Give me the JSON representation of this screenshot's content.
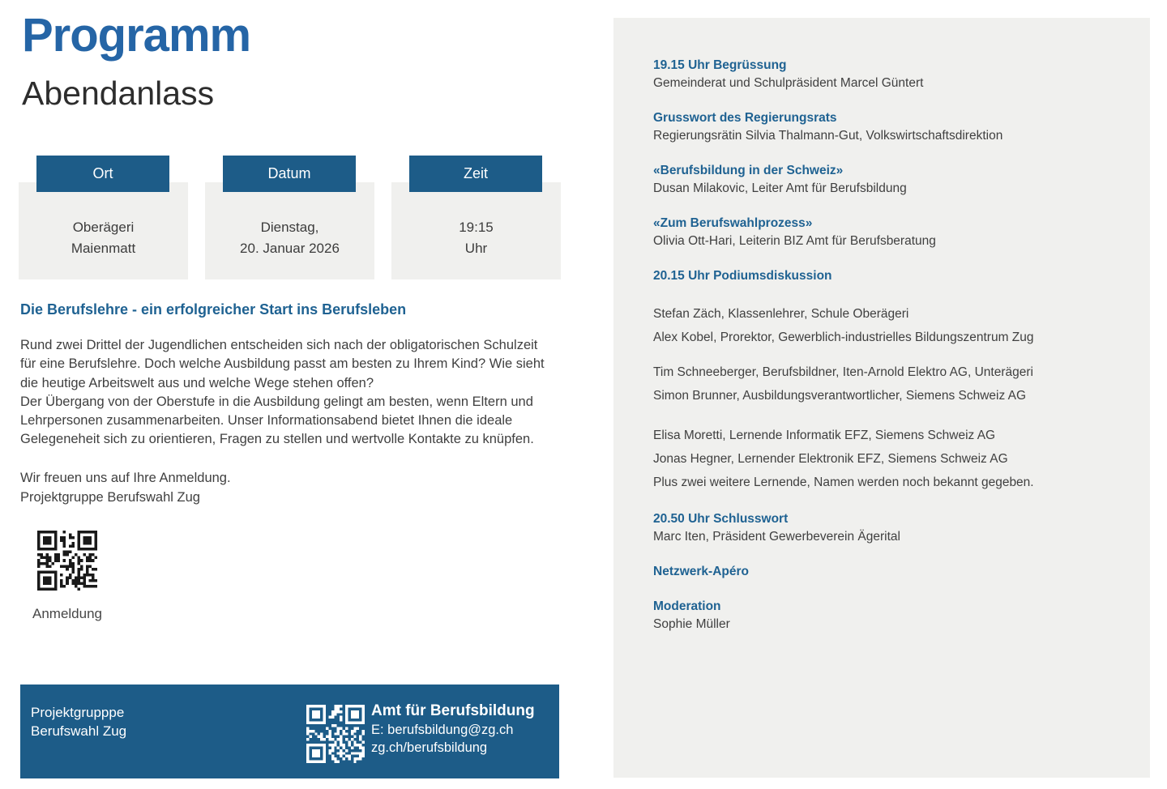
{
  "page": {
    "title": "Programm",
    "subtitle": "Abendanlass"
  },
  "info_cards": [
    {
      "label": "Ort",
      "lines": [
        "Oberägeri",
        "Maienmatt"
      ]
    },
    {
      "label": "Datum",
      "lines": [
        "Dienstag,",
        "20. Januar 2026"
      ]
    },
    {
      "label": "Zeit",
      "lines": [
        "19:15",
        "Uhr"
      ]
    }
  ],
  "intro": {
    "heading": "Die Berufslehre - ein erfolgreicher Start ins Berufsleben",
    "paragraph_lines": [
      "Rund zwei Drittel der Jugendlichen entscheiden sich nach der obligatorischen Schulzeit",
      "für eine Berufslehre. Doch welche Ausbildung passt am besten zu Ihrem Kind? Wie sieht",
      "die heutige Arbeitswelt aus und welche Wege stehen offen?",
      "Der Übergang von der Oberstufe in die Ausbildung gelingt am besten, wenn Eltern und",
      "Lehrpersonen zusammenarbeiten. Unser Informationsabend bietet Ihnen die ideale",
      "Gelegeneheit sich zu orientieren, Fragen zu stellen und wertvolle Kontakte zu knüpfen."
    ],
    "closing_lines": [
      "Wir freuen uns auf Ihre Anmeldung.",
      "Projektgruppe Berufswahl Zug"
    ],
    "qr_caption": "Anmeldung"
  },
  "footer": {
    "left_lines": [
      "Projektgrupppe",
      "Berufswahl Zug"
    ],
    "right_title": "Amt für Berufsbildung",
    "right_lines": [
      "E: berufsbildung@zg.ch",
      "zg.ch/berufsbildung"
    ]
  },
  "schedule": {
    "items": [
      {
        "heading": "19.15 Uhr Begrüssung",
        "lines": [
          "Gemeinderat und Schulpräsident Marcel Güntert"
        ]
      },
      {
        "heading": "Grusswort des Regierungsrats",
        "lines": [
          "Regierungsrätin Silvia Thalmann-Gut, Volkswirtschaftsdirektion"
        ]
      },
      {
        "heading": "«Berufsbildung in der Schweiz»",
        "lines": [
          "Dusan Milakovic, Leiter Amt für Berufsbildung"
        ]
      },
      {
        "heading": "«Zum Berufswahlprozess»",
        "lines": [
          "Olivia Ott-Hari, Leiterin BIZ Amt für Berufsberatung"
        ]
      },
      {
        "heading": "20.15 Uhr Podiumsdiskussion",
        "lines": []
      },
      {
        "heading": "",
        "lines": [
          "Stefan Zäch, Klassenlehrer, Schule Oberägeri",
          "Alex Kobel, Prorektor, Gewerblich-industrielles Bildungszentrum Zug"
        ]
      },
      {
        "heading": "",
        "lines": [
          "Tim Schneeberger, Berufsbildner, Iten-Arnold Elektro AG, Unterägeri",
          "Simon Brunner, Ausbildungsverantwortlicher, Siemens Schweiz AG"
        ]
      },
      {
        "heading": "",
        "lines": [
          "Elisa Moretti, Lernende Informatik EFZ, Siemens Schweiz AG",
          "Jonas Hegner, Lernender Elektronik EFZ, Siemens Schweiz AG",
          "Plus zwei weitere Lernende, Namen werden noch bekannt gegeben."
        ]
      },
      {
        "heading": "20.50 Uhr Schlusswort",
        "lines": [
          "Marc Iten, Präsident Gewerbeverein Ägerital"
        ]
      },
      {
        "heading": "Netzwerk-Apéro",
        "lines": []
      },
      {
        "heading": "Moderation",
        "lines": [
          "Sophie Müller"
        ]
      }
    ]
  },
  "colors": {
    "brand_blue": "#2565a6",
    "heading_blue": "#1f6292",
    "bar_blue": "#1d5c88",
    "panel_gray": "#f0f0ee",
    "text_dark": "#3d3d3d",
    "qr_dark": "#1a1a1a"
  }
}
